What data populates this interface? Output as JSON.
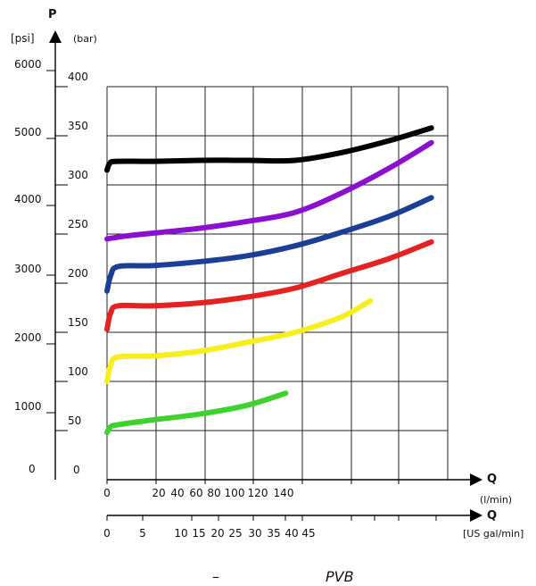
{
  "chart_data": {
    "type": "line",
    "y_axis": {
      "name": "P",
      "primary_unit": "[psi]",
      "primary_ticks": [
        "0",
        "1000",
        "2000",
        "3000",
        "4000",
        "5000",
        "6000"
      ],
      "secondary_unit": "(bar)",
      "secondary_ticks": [
        "0",
        "50",
        "100",
        "150",
        "200",
        "250",
        "300",
        "350",
        "400"
      ],
      "ylim_bar": [
        0,
        400
      ]
    },
    "x_axis": {
      "name": "Q",
      "primary_unit": "(l/min)",
      "primary_ticks": [
        "0",
        "20",
        "40",
        "60",
        "80",
        "100",
        "120",
        "140"
      ],
      "secondary_name": "Q",
      "secondary_unit": "[US gal/min]",
      "secondary_ticks": [
        "0",
        "5",
        "10",
        "15",
        "20",
        "25",
        "30",
        "35",
        "40",
        "45"
      ],
      "xlim_lmin": [
        0,
        350
      ]
    },
    "grid": true,
    "caption_dash": "–",
    "caption": "PVB",
    "series": [
      {
        "color": "#000000",
        "points": [
          [
            0,
            315
          ],
          [
            3,
            322
          ],
          [
            10,
            324
          ],
          [
            50,
            324
          ],
          [
            100,
            325
          ],
          [
            150,
            325
          ],
          [
            200,
            325
          ],
          [
            250,
            333
          ],
          [
            300,
            345
          ],
          [
            345,
            358
          ]
        ]
      },
      {
        "color": "#8a0fcf",
        "points": [
          [
            0,
            245
          ],
          [
            20,
            248
          ],
          [
            60,
            252
          ],
          [
            100,
            256
          ],
          [
            150,
            263
          ],
          [
            200,
            272
          ],
          [
            250,
            292
          ],
          [
            300,
            317
          ],
          [
            345,
            343
          ]
        ]
      },
      {
        "color": "#1b3f95",
        "points": [
          [
            0,
            192
          ],
          [
            4,
            208
          ],
          [
            12,
            217
          ],
          [
            50,
            218
          ],
          [
            100,
            222
          ],
          [
            150,
            228
          ],
          [
            200,
            238
          ],
          [
            250,
            252
          ],
          [
            300,
            268
          ],
          [
            345,
            287
          ]
        ]
      },
      {
        "color": "#e52222",
        "points": [
          [
            0,
            153
          ],
          [
            4,
            170
          ],
          [
            12,
            177
          ],
          [
            50,
            177
          ],
          [
            100,
            180
          ],
          [
            150,
            186
          ],
          [
            200,
            195
          ],
          [
            250,
            210
          ],
          [
            300,
            225
          ],
          [
            345,
            242
          ]
        ]
      },
      {
        "color": "#f7ee1e",
        "points": [
          [
            0,
            100
          ],
          [
            4,
            117
          ],
          [
            12,
            125
          ],
          [
            50,
            126
          ],
          [
            100,
            131
          ],
          [
            150,
            140
          ],
          [
            200,
            150
          ],
          [
            250,
            166
          ],
          [
            280,
            182
          ]
        ]
      },
      {
        "color": "#3ed22e",
        "points": [
          [
            0,
            48
          ],
          [
            4,
            54
          ],
          [
            12,
            56
          ],
          [
            50,
            61
          ],
          [
            100,
            67
          ],
          [
            150,
            76
          ],
          [
            190,
            88
          ]
        ]
      }
    ]
  }
}
